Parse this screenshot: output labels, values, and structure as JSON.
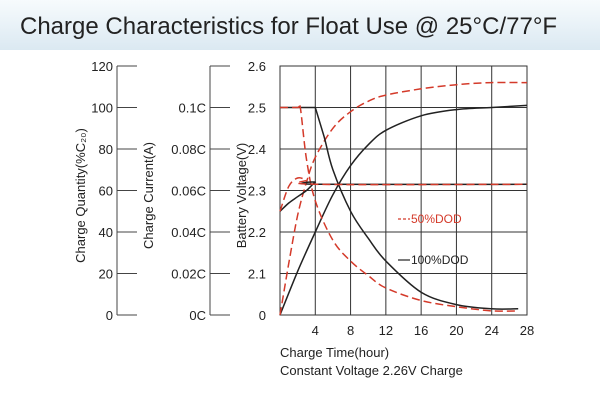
{
  "chart_data": {
    "type": "line",
    "title": "Charge Characteristics for Float Use @ 25°C/77°F",
    "xlabel": "Charge Time(hour)",
    "xlabel2": "Constant Voltage 2.26V Charge",
    "xlim": [
      0,
      28
    ],
    "x_ticks": [
      4,
      8,
      12,
      16,
      20,
      24,
      28
    ],
    "grid": true,
    "axes": {
      "quantity": {
        "label": "Charge Quantity(%C₂₀)",
        "ylim": [
          0,
          120
        ],
        "ticks": [
          "0",
          "20",
          "40",
          "60",
          "80",
          "100",
          "120"
        ]
      },
      "current": {
        "label": "Charge Current(A)",
        "ylim": [
          0,
          0.12
        ],
        "ticks": [
          "0C",
          "0.02C",
          "0.04C",
          "0.06C",
          "0.08C",
          "0.1C",
          ""
        ]
      },
      "voltage": {
        "label": "Battery Voltage(V)",
        "ylim": [
          2.0,
          2.6
        ],
        "ticks": [
          "0",
          "2.1",
          "2.2",
          "2.3",
          "2.4",
          "2.5",
          "2.6"
        ]
      }
    },
    "legend": [
      {
        "name": "50%DOD",
        "style": "dashed",
        "color": "#d43a2a"
      },
      {
        "name": "100%DOD",
        "style": "solid",
        "color": "#222222"
      }
    ],
    "series": [
      {
        "name": "Charge quantity 100%DOD",
        "axis": "quantity",
        "style": "solid",
        "color": "#222222",
        "x": [
          0,
          2,
          4,
          6,
          8,
          10,
          12,
          16,
          20,
          24,
          28
        ],
        "y": [
          0,
          21,
          40,
          58,
          72,
          82,
          89,
          96,
          99,
          100,
          101
        ]
      },
      {
        "name": "Charge quantity 50%DOD",
        "axis": "quantity",
        "style": "dashed",
        "color": "#d43a2a",
        "x": [
          0,
          1,
          2,
          3,
          4,
          6,
          8,
          10,
          12,
          16,
          20,
          24,
          28
        ],
        "y": [
          0,
          25,
          48,
          64,
          76,
          90,
          98,
          103,
          106,
          109,
          111,
          112,
          112
        ]
      },
      {
        "name": "Charge current 100%DOD",
        "axis": "current",
        "style": "solid",
        "color": "#222222",
        "x": [
          0,
          4,
          4,
          5,
          6,
          8,
          10,
          12,
          16,
          20,
          24,
          27
        ],
        "y": [
          0.1,
          0.1,
          0.1,
          0.086,
          0.07,
          0.05,
          0.037,
          0.026,
          0.011,
          0.005,
          0.003,
          0.003
        ]
      },
      {
        "name": "Charge current 50%DOD",
        "axis": "current",
        "style": "dashed",
        "color": "#d43a2a",
        "x": [
          0,
          2,
          2.3,
          3,
          4,
          6,
          8,
          10,
          12,
          16,
          20,
          24,
          27
        ],
        "y": [
          0.1,
          0.1,
          0.1,
          0.075,
          0.055,
          0.036,
          0.026,
          0.019,
          0.013,
          0.007,
          0.004,
          0.002,
          0.002
        ]
      },
      {
        "name": "Battery voltage 100%DOD",
        "axis": "voltage",
        "style": "solid",
        "color": "#222222",
        "x": [
          0,
          1,
          2,
          3,
          4,
          4.3,
          28
        ],
        "y": [
          2.25,
          2.27,
          2.285,
          2.3,
          2.32,
          2.315,
          2.315
        ]
      },
      {
        "name": "Battery voltage 50%DOD",
        "axis": "voltage",
        "style": "dashed",
        "color": "#d43a2a",
        "x": [
          0,
          1,
          2,
          3,
          4,
          28
        ],
        "y": [
          2.25,
          2.31,
          2.33,
          2.325,
          2.315,
          2.315
        ]
      }
    ]
  }
}
